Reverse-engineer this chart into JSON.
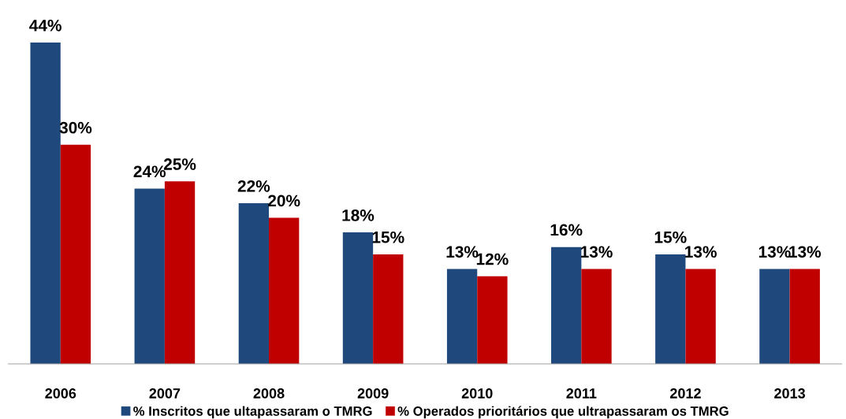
{
  "chart_data": {
    "type": "bar",
    "categories": [
      "2006",
      "2007",
      "2008",
      "2009",
      "2010",
      "2011",
      "2012",
      "2013"
    ],
    "series": [
      {
        "name": "% Inscritos que ultapassaram o TMRG",
        "color": "#1f497d",
        "values": [
          44,
          24,
          22,
          18,
          13,
          16,
          15,
          13
        ],
        "value_labels": [
          "44%",
          "24%",
          "22%",
          "18%",
          "13%",
          "16%",
          "15%",
          "13%"
        ]
      },
      {
        "name": "% Operados prioritários que ultrapassaram os TMRG",
        "color": "#c00000",
        "values": [
          30,
          25,
          20,
          15,
          12,
          13,
          13,
          13
        ],
        "value_labels": [
          "30%",
          "25%",
          "20%",
          "15%",
          "12%",
          "13%",
          "13%",
          "13%"
        ]
      }
    ],
    "legend": "bottom",
    "grid": false
  }
}
